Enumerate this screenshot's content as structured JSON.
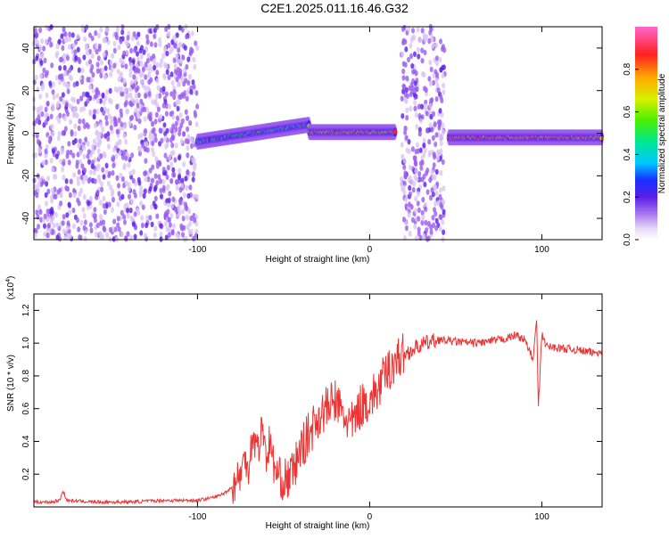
{
  "page": {
    "title": "C2E1.2025.011.16.46.G32"
  },
  "colors": {
    "snr_line": "#ee3333",
    "spectrogram_colormap": [
      "#ffffff",
      "#d9c6f2",
      "#9a5cf0",
      "#5a1ee8",
      "#1730ff",
      "#00c8ff",
      "#00e890",
      "#48f000",
      "#d8f000",
      "#ffaa00",
      "#ff2020",
      "#ff66cc"
    ]
  },
  "chart_data": [
    {
      "type": "heatmap",
      "title": "C2E1.2025.011.16.46.G32",
      "xlabel": "Height of straight line (km)",
      "ylabel": "Frequency (Hz)",
      "xlim": [
        -195,
        135
      ],
      "ylim": [
        -50,
        50
      ],
      "x_ticks": [
        -100,
        0,
        100
      ],
      "y_ticks": [
        -40,
        -20,
        0,
        20,
        40
      ],
      "x_tick_labels": [
        "-100",
        "0",
        "100"
      ],
      "y_tick_labels": [
        "-40",
        "-20",
        "0",
        "20",
        "40"
      ],
      "colorbar": {
        "label": "Normalized spectral amplitude",
        "range": [
          0,
          1
        ],
        "ticks": [
          0.0,
          0.2,
          0.4,
          0.6,
          0.8
        ],
        "tick_labels": [
          "0.0",
          "0.2",
          "0.4",
          "0.6",
          "0.8"
        ]
      },
      "regions": [
        {
          "name": "noise",
          "x_range": [
            -195,
            -100
          ],
          "freq_range": [
            -50,
            50
          ],
          "amplitude": [
            0.05,
            0.25
          ]
        },
        {
          "name": "signal_rising",
          "x_range": [
            -100,
            -35
          ],
          "freq_center_start": -4,
          "freq_center_end": 4,
          "amplitude": [
            0.3,
            0.7
          ]
        },
        {
          "name": "signal_steady",
          "x_range": [
            -35,
            15
          ],
          "freq_center": 0.5,
          "amplitude": [
            0.6,
            0.95
          ]
        },
        {
          "name": "noise",
          "x_range": [
            18,
            44
          ],
          "freq_range": [
            -50,
            50
          ],
          "amplitude": [
            0.05,
            0.25
          ]
        },
        {
          "name": "signal_steady",
          "x_range": [
            46,
            135
          ],
          "freq_center": -2,
          "amplitude": [
            0.7,
            0.95
          ]
        }
      ]
    },
    {
      "type": "line",
      "title": "",
      "xlabel": "Height of straight line (km)",
      "ylabel": "SNR (10 * v/v)",
      "y_multiplier_label": "(x10",
      "y_multiplier_exponent": "4",
      "y_multiplier_close": ")",
      "xlim": [
        -195,
        135
      ],
      "ylim": [
        0,
        1.3
      ],
      "x_ticks": [
        -100,
        0,
        100
      ],
      "y_ticks": [
        0.2,
        0.4,
        0.6,
        0.8,
        1.0,
        1.2
      ],
      "x_tick_labels": [
        "-100",
        "0",
        "100"
      ],
      "y_tick_labels": [
        "0.2",
        "0.4",
        "0.6",
        "0.8",
        "1.0",
        "1.2"
      ],
      "series": [
        {
          "x": [
            -195,
            -185,
            -180,
            -178,
            -176,
            -160,
            -140,
            -120,
            -100,
            -95,
            -90,
            -85,
            -80,
            -75,
            -72,
            -70,
            -68,
            -65,
            -62,
            -60,
            -58,
            -55,
            -52,
            -50,
            -45,
            -40,
            -35,
            -30,
            -25,
            -20,
            -15,
            -10,
            -5,
            0,
            5,
            10,
            15,
            20,
            25,
            30,
            40,
            50,
            60,
            70,
            80,
            85,
            90,
            95,
            97,
            98,
            100,
            103,
            110,
            120,
            130,
            135
          ],
          "y": [
            0.03,
            0.03,
            0.04,
            0.1,
            0.04,
            0.03,
            0.03,
            0.04,
            0.04,
            0.05,
            0.06,
            0.08,
            0.12,
            0.2,
            0.3,
            0.25,
            0.45,
            0.35,
            0.5,
            0.3,
            0.4,
            0.22,
            0.18,
            0.15,
            0.2,
            0.35,
            0.45,
            0.55,
            0.6,
            0.65,
            0.55,
            0.5,
            0.62,
            0.65,
            0.72,
            0.82,
            0.9,
            0.93,
            0.96,
            0.99,
            1.02,
            1.01,
            1.0,
            1.01,
            1.03,
            1.05,
            1.02,
            0.9,
            1.15,
            0.6,
            1.05,
            0.98,
            0.97,
            0.96,
            0.94,
            0.95
          ]
        }
      ]
    }
  ]
}
